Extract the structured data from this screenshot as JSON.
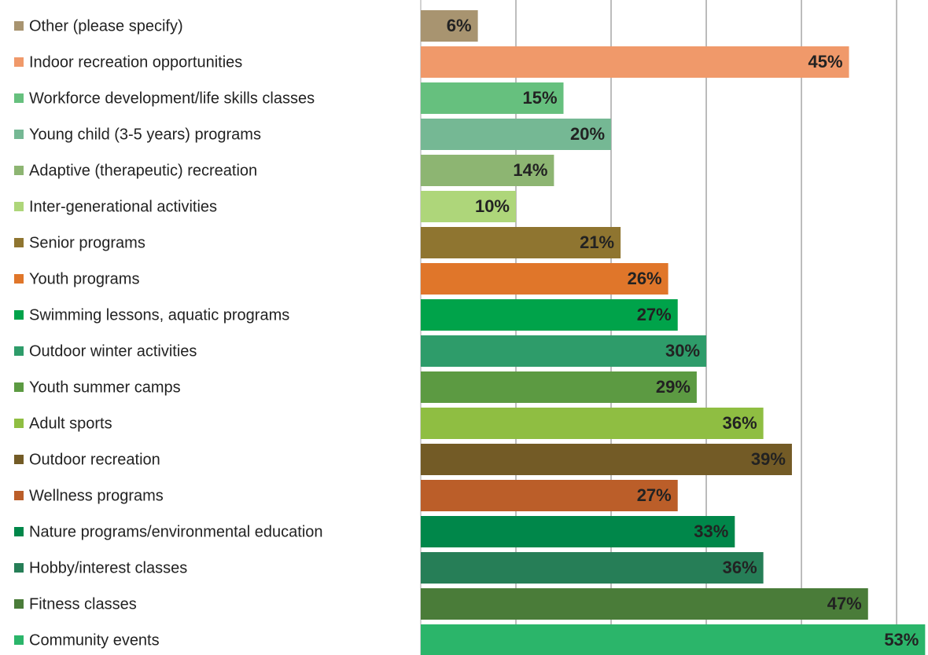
{
  "chart_data": {
    "type": "bar",
    "orientation": "horizontal",
    "categories": [
      "Other (please specify)",
      "Indoor recreation opportunities",
      "Workforce development/life skills classes",
      "Young child (3-5 years) programs",
      "Adaptive (therapeutic) recreation",
      "Inter-generational activities",
      "Senior programs",
      "Youth programs",
      "Swimming lessons, aquatic programs",
      "Outdoor winter activities",
      "Youth summer camps",
      "Adult sports",
      "Outdoor recreation",
      "Wellness programs",
      "Nature programs/environmental education",
      "Hobby/interest classes",
      "Fitness classes",
      "Community events"
    ],
    "values": [
      6,
      45,
      15,
      20,
      14,
      10,
      21,
      26,
      27,
      30,
      29,
      36,
      39,
      27,
      33,
      36,
      47,
      53
    ],
    "value_labels": [
      "6%",
      "45%",
      "15%",
      "20%",
      "14%",
      "10%",
      "21%",
      "26%",
      "27%",
      "30%",
      "29%",
      "36%",
      "39%",
      "27%",
      "33%",
      "36%",
      "47%",
      "53%"
    ],
    "colors": [
      "#a89470",
      "#f0996a",
      "#66c07e",
      "#75b894",
      "#8db572",
      "#aed67a",
      "#8f7530",
      "#e0762a",
      "#00a34a",
      "#2e9c6a",
      "#5c9a42",
      "#8fbe42",
      "#735b26",
      "#bb5e29",
      "#00874a",
      "#267e57",
      "#4a7c39",
      "#2bb56a"
    ],
    "xlim": [
      0,
      53.3
    ],
    "xticks": [
      0,
      10,
      20,
      30,
      40,
      50
    ],
    "grid": true
  }
}
